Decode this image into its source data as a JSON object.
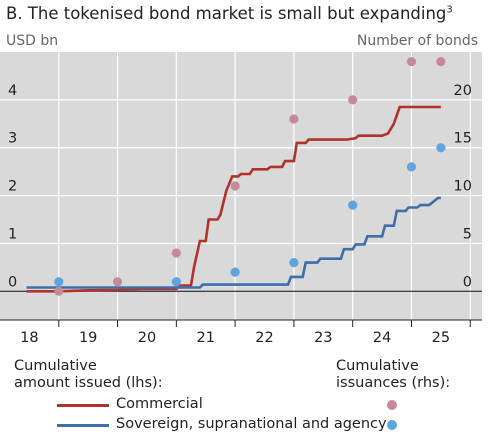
{
  "chart_data": {
    "type": "line",
    "title": "B. The tokenised bond market is small but expanding",
    "title_footnote": "3",
    "lhs_unit": "USD bn",
    "rhs_unit": "Number of bonds",
    "xlim": [
      17.5,
      25.7
    ],
    "x_ticks": [
      18,
      19,
      20,
      21,
      22,
      23,
      24,
      25
    ],
    "ylim_lhs": [
      -0.6,
      5
    ],
    "ylim_rhs": [
      -3,
      25
    ],
    "y_ticks_lhs": [
      0,
      1,
      2,
      3,
      4
    ],
    "y_ticks_rhs": [
      0,
      5,
      10,
      15,
      20
    ],
    "grid": true,
    "legend_heading_lines": [
      "Cumulative",
      "amount issued (lhs):"
    ],
    "legend_heading_dots": [
      "Cumulative",
      "issuances (rhs):"
    ],
    "series": [
      {
        "name": "Commercial",
        "axis": "lhs",
        "color": "#b0332b",
        "points": [
          [
            17.95,
            0
          ],
          [
            18.5,
            0
          ],
          [
            19.0,
            0.02
          ],
          [
            19.5,
            0.03
          ],
          [
            19.9,
            0.05
          ],
          [
            20.5,
            0.05
          ],
          [
            20.55,
            0.12
          ],
          [
            20.75,
            0.12
          ],
          [
            20.8,
            0.5
          ],
          [
            20.9,
            1.05
          ],
          [
            21.0,
            1.05
          ],
          [
            21.05,
            1.5
          ],
          [
            21.2,
            1.5
          ],
          [
            21.25,
            1.6
          ],
          [
            21.35,
            2.1
          ],
          [
            21.45,
            2.4
          ],
          [
            21.55,
            2.4
          ],
          [
            21.6,
            2.45
          ],
          [
            21.75,
            2.45
          ],
          [
            21.8,
            2.55
          ],
          [
            22.05,
            2.55
          ],
          [
            22.1,
            2.6
          ],
          [
            22.3,
            2.6
          ],
          [
            22.35,
            2.72
          ],
          [
            22.5,
            2.72
          ],
          [
            22.55,
            3.1
          ],
          [
            22.7,
            3.1
          ],
          [
            22.75,
            3.17
          ],
          [
            23.0,
            3.17
          ],
          [
            23.4,
            3.17
          ],
          [
            23.55,
            3.2
          ],
          [
            23.6,
            3.25
          ],
          [
            24.0,
            3.25
          ],
          [
            24.1,
            3.3
          ],
          [
            24.2,
            3.5
          ],
          [
            24.3,
            3.85
          ],
          [
            25.0,
            3.85
          ]
        ]
      },
      {
        "name": "Sovereign, supranational and agency",
        "axis": "lhs",
        "color": "#3f6fa8",
        "points": [
          [
            17.95,
            0.08
          ],
          [
            18.5,
            0.08
          ],
          [
            19.0,
            0.08
          ],
          [
            19.5,
            0.08
          ],
          [
            20.0,
            0.08
          ],
          [
            20.5,
            0.08
          ],
          [
            20.55,
            0.08
          ],
          [
            20.9,
            0.08
          ],
          [
            20.95,
            0.14
          ],
          [
            21.5,
            0.14
          ],
          [
            22.0,
            0.14
          ],
          [
            22.4,
            0.14
          ],
          [
            22.45,
            0.3
          ],
          [
            22.65,
            0.3
          ],
          [
            22.7,
            0.6
          ],
          [
            22.9,
            0.6
          ],
          [
            22.95,
            0.68
          ],
          [
            23.3,
            0.68
          ],
          [
            23.35,
            0.88
          ],
          [
            23.5,
            0.88
          ],
          [
            23.55,
            0.98
          ],
          [
            23.7,
            0.98
          ],
          [
            23.75,
            1.15
          ],
          [
            24.0,
            1.15
          ],
          [
            24.05,
            1.37
          ],
          [
            24.2,
            1.37
          ],
          [
            24.25,
            1.68
          ],
          [
            24.4,
            1.68
          ],
          [
            24.45,
            1.75
          ],
          [
            24.6,
            1.75
          ],
          [
            24.65,
            1.8
          ],
          [
            24.8,
            1.8
          ],
          [
            24.85,
            1.85
          ],
          [
            24.95,
            1.95
          ],
          [
            25.0,
            1.95
          ]
        ]
      }
    ],
    "dot_series": [
      {
        "name": "Commercial",
        "axis": "rhs",
        "color": "#c58a9a",
        "points": [
          [
            18.5,
            0
          ],
          [
            19.5,
            1
          ],
          [
            20.5,
            4
          ],
          [
            21.5,
            11
          ],
          [
            22.5,
            18
          ],
          [
            23.5,
            20
          ],
          [
            24.5,
            24
          ],
          [
            25.0,
            24
          ]
        ]
      },
      {
        "name": "Sovereign, supranational and agency",
        "axis": "rhs",
        "color": "#5ea4df",
        "points": [
          [
            18.5,
            1
          ],
          [
            20.5,
            1
          ],
          [
            21.5,
            2
          ],
          [
            22.5,
            3
          ],
          [
            23.5,
            9
          ],
          [
            24.5,
            13
          ],
          [
            25.0,
            15
          ]
        ]
      }
    ]
  }
}
